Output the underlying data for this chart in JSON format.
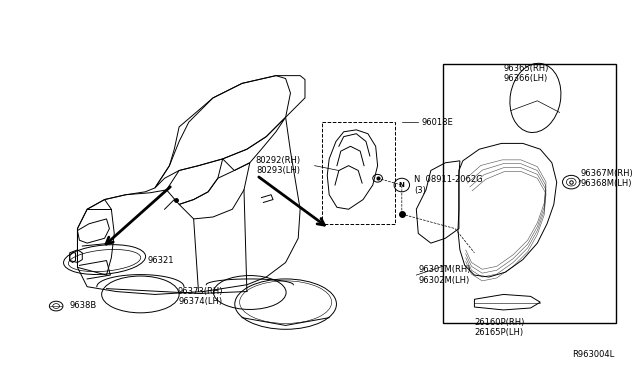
{
  "bg_color": "#ffffff",
  "line_color": "#000000",
  "text_color": "#000000",
  "fig_width": 6.4,
  "fig_height": 3.72,
  "dpi": 100,
  "diagram_code": "R963004L",
  "label_96321": "96321",
  "label_9638B": "9638B",
  "label_80292": "80292(RH)\n80293(LH)",
  "label_96018E": "96018E",
  "label_N": "N  08911-2062G\n(3)",
  "label_96373": "96373(RH)\n96374(LH)",
  "label_96301": "96301M(RH)\n96302M(LH)",
  "label_96365": "96365(RH)\n96366(LH)",
  "label_96367": "96367M(RH)\n96368M(LH)",
  "label_26160": "26160P(RH)\n26165P(LH)"
}
